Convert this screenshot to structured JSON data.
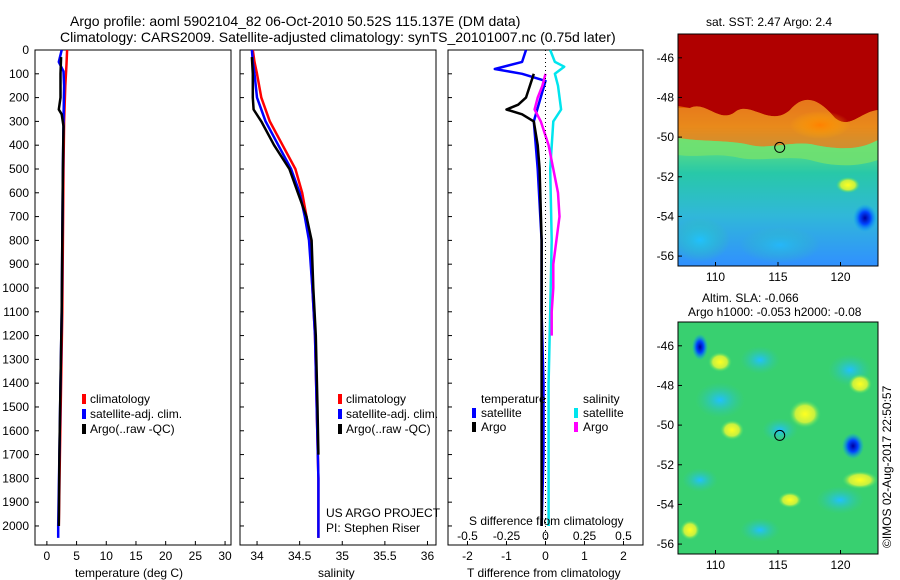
{
  "header": {
    "line1": "Argo profile: aoml 5902104_82 06-Oct-2010 50.52S 115.137E (DM data)",
    "line2": "Climatology: CARS2009. Satellite-adjusted climatology: synTS_20101007.nc (0.75d later)"
  },
  "credits": {
    "project": "US ARGO PROJECT",
    "pi": "PI: Stephen Riser",
    "imos": "©IMOS 02-Aug-2017 22:50:57"
  },
  "colors": {
    "climatology": "#ff0000",
    "satellite": "#0000ff",
    "argo": "#000000",
    "sal_satellite": "#00e5ee",
    "sal_argo": "#ff00ff"
  },
  "chart_data": [
    {
      "type": "line",
      "name": "temperature-profile",
      "xlabel": "temperature (deg C)",
      "ylabel": "",
      "xlim": [
        -2,
        31
      ],
      "ylim": [
        2080,
        0
      ],
      "xticks": [
        "0",
        "5",
        "10",
        "15",
        "20",
        "25",
        "30"
      ],
      "xtick_values": [
        0,
        5,
        10,
        15,
        20,
        25,
        30
      ],
      "yticks": [
        "0",
        "100",
        "200",
        "300",
        "400",
        "500",
        "600",
        "700",
        "800",
        "900",
        "1000",
        "1100",
        "1200",
        "1300",
        "1400",
        "1500",
        "1600",
        "1700",
        "1800",
        "1900",
        "2000"
      ],
      "ytick_values": [
        0,
        100,
        200,
        300,
        400,
        500,
        600,
        700,
        800,
        900,
        1000,
        1100,
        1200,
        1300,
        1400,
        1500,
        1600,
        1700,
        1800,
        1900,
        2000
      ],
      "legend": [
        "climatology",
        "satellite-adj. clim.",
        "Argo(..raw -QC)"
      ],
      "series": [
        {
          "name": "climatology",
          "color": "#ff0000",
          "points": [
            [
              3.4,
              0
            ],
            [
              3.3,
              60
            ],
            [
              3.1,
              150
            ],
            [
              2.9,
              300
            ],
            [
              2.8,
              500
            ],
            [
              2.7,
              800
            ],
            [
              2.6,
              1100
            ],
            [
              2.4,
              1400
            ],
            [
              2.2,
              1700
            ],
            [
              2.0,
              2000
            ]
          ]
        },
        {
          "name": "satellite-adj. clim.",
          "color": "#0000ff",
          "points": [
            [
              2.5,
              0
            ],
            [
              2.0,
              50
            ],
            [
              2.8,
              90
            ],
            [
              2.9,
              150
            ],
            [
              2.8,
              300
            ],
            [
              2.7,
              500
            ],
            [
              2.6,
              800
            ],
            [
              2.5,
              1100
            ],
            [
              2.3,
              1400
            ],
            [
              2.1,
              1700
            ],
            [
              1.9,
              2000
            ],
            [
              1.9,
              2050
            ]
          ]
        },
        {
          "name": "Argo",
          "color": "#000000",
          "points": [
            [
              2.4,
              30
            ],
            [
              2.3,
              100
            ],
            [
              2.3,
              200
            ],
            [
              2.0,
              250
            ],
            [
              2.5,
              270
            ],
            [
              2.8,
              320
            ],
            [
              2.7,
              500
            ],
            [
              2.6,
              800
            ],
            [
              2.5,
              1100
            ],
            [
              2.3,
              1400
            ],
            [
              2.1,
              1700
            ],
            [
              2.0,
              2000
            ]
          ]
        }
      ]
    },
    {
      "type": "line",
      "name": "salinity-profile",
      "xlabel": "salinity",
      "ylabel": "",
      "xlim": [
        33.8,
        36.1
      ],
      "ylim": [
        2080,
        0
      ],
      "xticks": [
        "34",
        "34.5",
        "35",
        "35.5",
        "36"
      ],
      "xtick_values": [
        34,
        34.5,
        35,
        35.5,
        36
      ],
      "legend": [
        "climatology",
        "satellite-adj. clim.",
        "Argo(..raw -QC)"
      ],
      "series": [
        {
          "name": "climatology",
          "color": "#ff0000",
          "points": [
            [
              33.95,
              0
            ],
            [
              33.97,
              50
            ],
            [
              34.0,
              100
            ],
            [
              34.05,
              200
            ],
            [
              34.15,
              300
            ],
            [
              34.3,
              400
            ],
            [
              34.45,
              500
            ],
            [
              34.53,
              600
            ],
            [
              34.58,
              700
            ],
            [
              34.62,
              800
            ],
            [
              34.65,
              1000
            ],
            [
              34.68,
              1200
            ],
            [
              34.7,
              1500
            ],
            [
              34.72,
              1800
            ],
            [
              34.72,
              2050
            ]
          ]
        },
        {
          "name": "satellite-adj. clim.",
          "color": "#0000ff",
          "points": [
            [
              33.94,
              0
            ],
            [
              33.95,
              50
            ],
            [
              33.97,
              100
            ],
            [
              34.0,
              200
            ],
            [
              34.1,
              300
            ],
            [
              34.25,
              400
            ],
            [
              34.4,
              500
            ],
            [
              34.5,
              600
            ],
            [
              34.56,
              700
            ],
            [
              34.61,
              800
            ],
            [
              34.65,
              1000
            ],
            [
              34.68,
              1200
            ],
            [
              34.7,
              1500
            ],
            [
              34.72,
              1800
            ],
            [
              34.72,
              2050
            ]
          ]
        },
        {
          "name": "Argo",
          "color": "#000000",
          "points": [
            [
              33.94,
              30
            ],
            [
              33.95,
              100
            ],
            [
              33.95,
              200
            ],
            [
              33.96,
              250
            ],
            [
              34.05,
              300
            ],
            [
              34.2,
              400
            ],
            [
              34.38,
              500
            ],
            [
              34.48,
              600
            ],
            [
              34.58,
              700
            ],
            [
              34.64,
              800
            ],
            [
              34.66,
              1000
            ],
            [
              34.69,
              1200
            ],
            [
              34.71,
              1500
            ],
            [
              34.72,
              1700
            ]
          ]
        }
      ],
      "annotations": [
        "US ARGO PROJECT",
        "PI: Stephen Riser"
      ]
    },
    {
      "type": "line",
      "name": "difference-profile",
      "xlabel": "T difference from climatology",
      "x2label": "S difference from climatology",
      "xlim": [
        -2.5,
        2.5
      ],
      "ylim": [
        2080,
        0
      ],
      "xticks": [
        "-2",
        "-1",
        "0",
        "1",
        "2"
      ],
      "xtick_values": [
        -2,
        -1,
        0,
        1,
        2
      ],
      "x2ticks": [
        "-0.5",
        "-0.25",
        "0",
        "0.25",
        "0.5"
      ],
      "x2tick_values": [
        -0.5,
        -0.25,
        0,
        0.25,
        0.5
      ],
      "legend": [
        "temperature",
        "satellite",
        "Argo",
        "salinity",
        "satellite",
        "Argo"
      ],
      "series": [
        {
          "name": "temperature satellite",
          "color": "#0000ff",
          "points": [
            [
              -0.5,
              0
            ],
            [
              -0.6,
              50
            ],
            [
              -1.3,
              80
            ],
            [
              -0.6,
              100
            ],
            [
              0.0,
              130
            ],
            [
              -0.3,
              300
            ],
            [
              -0.2,
              500
            ],
            [
              -0.1,
              800
            ],
            [
              -0.1,
              1100
            ],
            [
              -0.05,
              1400
            ],
            [
              -0.05,
              1700
            ],
            [
              -0.1,
              2000
            ]
          ]
        },
        {
          "name": "temperature Argo",
          "color": "#000000",
          "points": [
            [
              -0.3,
              100
            ],
            [
              -0.5,
              200
            ],
            [
              -0.7,
              230
            ],
            [
              -1.0,
              250
            ],
            [
              -0.6,
              270
            ],
            [
              -0.3,
              300
            ],
            [
              -0.2,
              400
            ],
            [
              -0.15,
              500
            ],
            [
              -0.1,
              800
            ],
            [
              -0.1,
              1100
            ],
            [
              -0.1,
              1400
            ],
            [
              -0.1,
              1700
            ],
            [
              -0.1,
              2000
            ]
          ]
        },
        {
          "name": "salinity satellite",
          "color": "#00e5ee",
          "points": [
            [
              0.03,
              0
            ],
            [
              0.06,
              50
            ],
            [
              0.12,
              70
            ],
            [
              0.06,
              100
            ],
            [
              0.08,
              150
            ],
            [
              0.1,
              250
            ],
            [
              0.05,
              300
            ],
            [
              0.03,
              500
            ],
            [
              0.04,
              800
            ],
            [
              0.03,
              1100
            ],
            [
              0.02,
              1400
            ],
            [
              0.02,
              1700
            ],
            [
              0.02,
              2000
            ]
          ]
        },
        {
          "name": "salinity Argo",
          "color": "#ff00ff",
          "points": [
            [
              0.0,
              100
            ],
            [
              -0.02,
              150
            ],
            [
              -0.05,
              200
            ],
            [
              -0.07,
              250
            ],
            [
              -0.03,
              300
            ],
            [
              0.02,
              400
            ],
            [
              0.05,
              500
            ],
            [
              0.08,
              600
            ],
            [
              0.09,
              700
            ],
            [
              0.07,
              800
            ],
            [
              0.05,
              900
            ],
            [
              0.05,
              1000
            ],
            [
              0.04,
              1100
            ],
            [
              0.04,
              1200
            ]
          ]
        }
      ]
    },
    {
      "type": "heatmap",
      "name": "sst-map",
      "title": "sat. SST: 2.47  Argo: 2.4",
      "xlim": [
        107,
        123
      ],
      "ylim": [
        -56.5,
        -44.8
      ],
      "xticks": [
        "110",
        "115",
        "120"
      ],
      "xtick_values": [
        110,
        115,
        120
      ],
      "yticks": [
        "-46",
        "-48",
        "-50",
        "-52",
        "-54",
        "-56"
      ],
      "ytick_values": [
        -46,
        -48,
        -50,
        -52,
        -54,
        -56
      ],
      "marker": [
        115.137,
        -50.52
      ]
    },
    {
      "type": "heatmap",
      "name": "sla-map",
      "title": "Altim. SLA: -0.066",
      "subtitle": "Argo h1000: -0.053 h2000: -0.08",
      "xlim": [
        107,
        123
      ],
      "ylim": [
        -56.5,
        -44.8
      ],
      "xticks": [
        "110",
        "115",
        "120"
      ],
      "xtick_values": [
        110,
        115,
        120
      ],
      "yticks": [
        "-46",
        "-48",
        "-50",
        "-52",
        "-54",
        "-56"
      ],
      "ytick_values": [
        -46,
        -48,
        -50,
        -52,
        -54,
        -56
      ],
      "marker": [
        115.137,
        -50.52
      ]
    }
  ]
}
